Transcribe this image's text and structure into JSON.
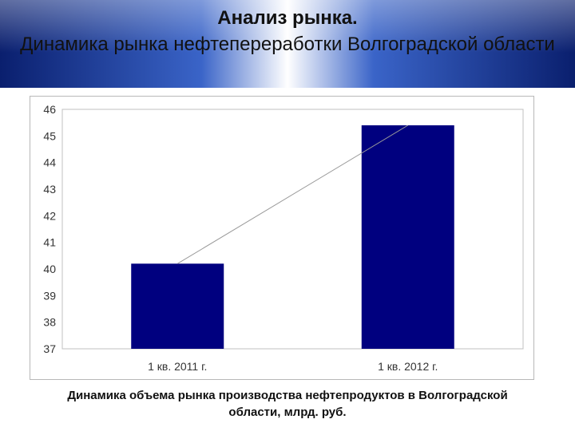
{
  "header": {
    "title": "Анализ рынка.",
    "subtitle": "Динамика рынка нефтепереработки Волгоградской области"
  },
  "caption": "Динамика объема рынка производства нефтепродуктов в Волгоградской области, млрд. руб.",
  "colors": {
    "bar": "#00007f",
    "header_dark": "#0a1f6e",
    "header_mid": "#3a64c8",
    "trendline": "#9a9a9a",
    "grid_border": "#c0c0c0"
  },
  "chart_data": {
    "type": "bar",
    "categories": [
      "1 кв. 2011 г.",
      "1 кв. 2012 г."
    ],
    "values": [
      40.2,
      45.4
    ],
    "title": "",
    "xlabel": "",
    "ylabel": "",
    "ylim": [
      37,
      46
    ],
    "yticks": [
      37,
      38,
      39,
      40,
      41,
      42,
      43,
      44,
      45,
      46
    ],
    "grid": false,
    "trendline": "linear",
    "legend": "none"
  }
}
